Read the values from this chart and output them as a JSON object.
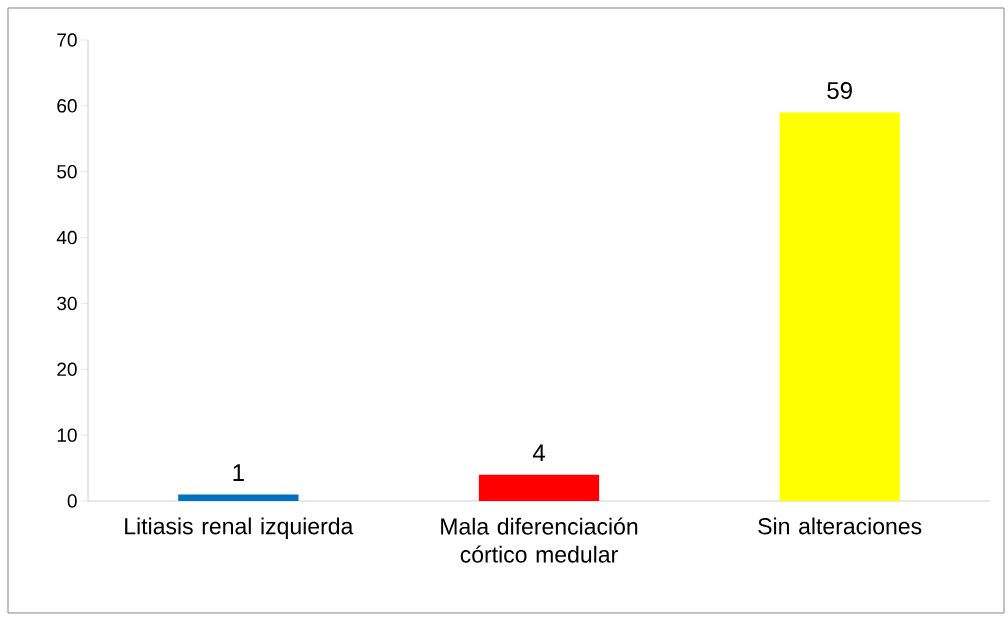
{
  "chart_data": {
    "type": "bar",
    "categories": [
      "Litiasis renal izquierda",
      "Mala diferenciación córtico medular",
      "Sin alteraciones"
    ],
    "values": [
      1,
      4,
      59
    ],
    "colors": [
      "#0070c0",
      "#ff0000",
      "#ffff00"
    ],
    "ylim": [
      0,
      70
    ],
    "yticks": [
      0,
      10,
      20,
      30,
      40,
      50,
      60,
      70
    ],
    "data_labels": true
  }
}
